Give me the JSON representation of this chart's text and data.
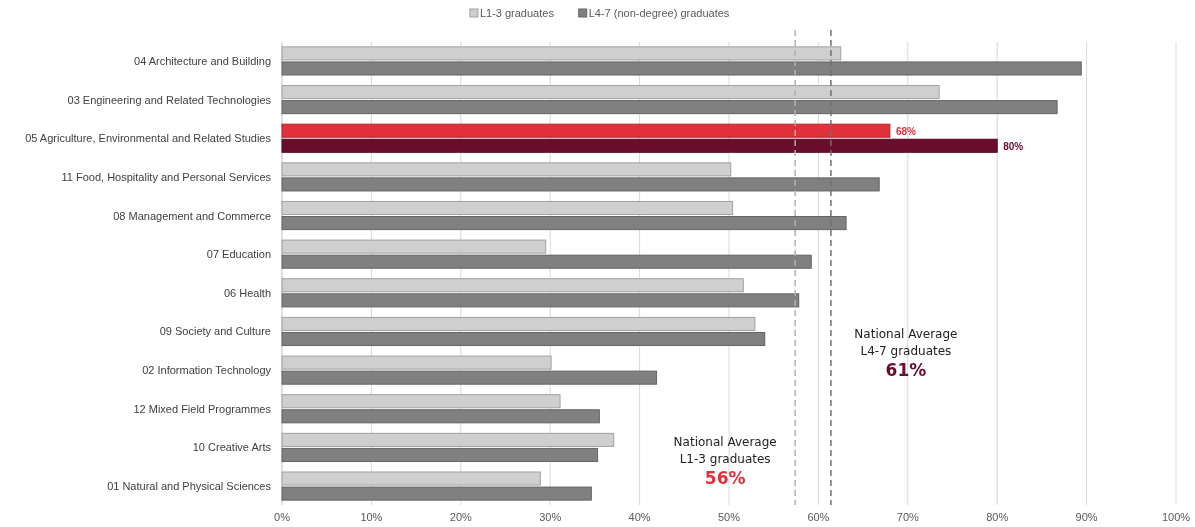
{
  "chart_data": {
    "type": "bar",
    "orientation": "horizontal",
    "categories": [
      "04 Architecture and Building",
      "03 Engineering and Related Technologies",
      "05 Agriculture, Environmental and Related  Studies",
      "11 Food, Hospitality and Personal Services",
      "08 Management and Commerce",
      "07 Education",
      "06 Health",
      "09 Society and Culture",
      "02 Information Technology",
      "12 Mixed Field Programmes",
      "10 Creative Arts",
      "01 Natural and Physical Sciences"
    ],
    "series": [
      {
        "name": "L1-3 graduates",
        "color": "#cfcfcf",
        "colors": [
          "#cfcfcf",
          "#cfcfcf",
          "#e0313b",
          "#cfcfcf",
          "#cfcfcf",
          "#cfcfcf",
          "#cfcfcf",
          "#cfcfcf",
          "#cfcfcf",
          "#cfcfcf",
          "#cfcfcf",
          "#cfcfcf"
        ],
        "values": [
          62.5,
          73.5,
          68,
          50.2,
          50.4,
          29.5,
          51.6,
          52.9,
          30.1,
          31.1,
          37.1,
          28.9
        ],
        "value_labels": [
          null,
          null,
          "68%",
          null,
          null,
          null,
          null,
          null,
          null,
          null,
          null,
          null
        ]
      },
      {
        "name": "L4-7 (non-degree) graduates",
        "color": "#808080",
        "colors": [
          "#808080",
          "#808080",
          "#6a0c2c",
          "#808080",
          "#808080",
          "#808080",
          "#808080",
          "#808080",
          "#808080",
          "#808080",
          "#808080",
          "#808080"
        ],
        "values": [
          89.4,
          86.7,
          80,
          66.8,
          63.1,
          59.2,
          57.8,
          54,
          41.9,
          35.5,
          35.3,
          34.6
        ],
        "value_labels": [
          null,
          null,
          "80%",
          null,
          null,
          null,
          null,
          null,
          null,
          null,
          null,
          null
        ]
      }
    ],
    "xlim": [
      0,
      100
    ],
    "xticks": [
      {
        "value": 0,
        "label": "0%"
      },
      {
        "value": 10,
        "label": "10%"
      },
      {
        "value": 20,
        "label": "20%"
      },
      {
        "value": 30,
        "label": "30%"
      },
      {
        "value": 40,
        "label": "40%"
      },
      {
        "value": 50,
        "label": "50%"
      },
      {
        "value": 60,
        "label": "60%"
      },
      {
        "value": 70,
        "label": "70%"
      },
      {
        "value": 80,
        "label": "80%"
      },
      {
        "value": 90,
        "label": "90%"
      },
      {
        "value": 100,
        "label": "100%"
      }
    ],
    "grid": "x",
    "legend": "top",
    "ref_lines": [
      {
        "axis": "x",
        "value": 57.4,
        "label": "National Average\nL1-3 graduates\n56%",
        "color": "#b0b0b0",
        "line_style": "dashed"
      },
      {
        "axis": "x",
        "value": 61.4,
        "label": "National Average\nL4-7 graduates\n61%",
        "color": "#707070",
        "line_style": "dashed"
      }
    ]
  }
}
